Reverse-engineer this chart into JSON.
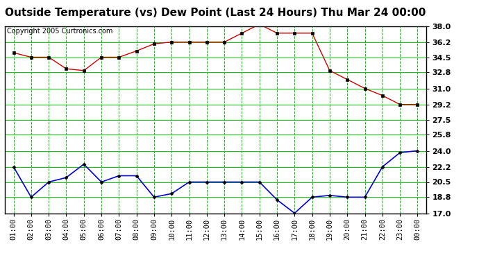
{
  "title": "Outside Temperature (vs) Dew Point (Last 24 Hours) Thu Mar 24 00:00",
  "copyright": "Copyright 2005 Curtronics.com",
  "x_labels": [
    "01:00",
    "02:00",
    "03:00",
    "04:00",
    "05:00",
    "06:00",
    "07:00",
    "08:00",
    "09:00",
    "10:00",
    "11:00",
    "12:00",
    "13:00",
    "14:00",
    "15:00",
    "16:00",
    "17:00",
    "18:00",
    "19:00",
    "20:00",
    "21:00",
    "22:00",
    "23:00",
    "00:00"
  ],
  "temp_data": [
    35.0,
    34.5,
    34.5,
    33.2,
    33.0,
    34.5,
    34.5,
    35.2,
    36.0,
    36.2,
    36.2,
    36.2,
    36.2,
    37.2,
    38.2,
    37.2,
    37.2,
    37.2,
    33.0,
    32.0,
    31.0,
    30.2,
    29.2,
    29.2
  ],
  "dew_data": [
    22.2,
    18.8,
    20.5,
    21.0,
    22.5,
    20.5,
    21.2,
    21.2,
    18.8,
    19.2,
    20.5,
    20.5,
    20.5,
    20.5,
    20.5,
    18.5,
    17.0,
    18.8,
    19.0,
    18.8,
    18.8,
    22.2,
    23.8,
    24.0
  ],
  "temp_color": "#cc0000",
  "dew_color": "#0000cc",
  "background_color": "#ffffff",
  "plot_bg_color": "#ffffff",
  "grid_color": "#00cc00",
  "ylim": [
    17.0,
    38.0
  ],
  "yticks": [
    17.0,
    18.8,
    20.5,
    22.2,
    24.0,
    25.8,
    27.5,
    29.2,
    31.0,
    32.8,
    34.5,
    36.2,
    38.0
  ],
  "title_fontsize": 11,
  "copyright_fontsize": 7,
  "tick_fontsize": 7.5,
  "ytick_fontsize": 8
}
